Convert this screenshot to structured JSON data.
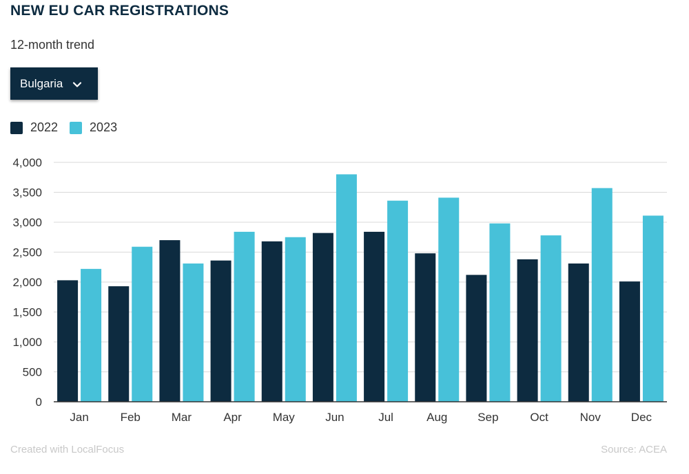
{
  "header": {
    "title": "NEW EU CAR REGISTRATIONS",
    "subtitle": "12-month trend"
  },
  "selector": {
    "selected": "Bulgaria",
    "icon": "chevron-down-icon"
  },
  "footer": {
    "credit": "Created with LocalFocus",
    "source": "Source:  ACEA"
  },
  "colors": {
    "s2022": "#0d2b40",
    "s2023": "#47c1d9",
    "grid": "#d9d9d9"
  },
  "chart_data": {
    "type": "bar",
    "title": "NEW EU CAR REGISTRATIONS",
    "subtitle": "12-month trend",
    "categories": [
      "Jan",
      "Feb",
      "Mar",
      "Apr",
      "May",
      "Jun",
      "Jul",
      "Aug",
      "Sep",
      "Oct",
      "Nov",
      "Dec"
    ],
    "series": [
      {
        "name": "2022",
        "values": [
          2030,
          1930,
          2700,
          2360,
          2680,
          2820,
          2840,
          2480,
          2120,
          2380,
          2310,
          2010
        ]
      },
      {
        "name": "2023",
        "values": [
          2220,
          2590,
          2310,
          2840,
          2750,
          3800,
          3360,
          3410,
          2980,
          2780,
          3570,
          3110
        ]
      }
    ],
    "ylim": [
      0,
      4000
    ],
    "yticks": [
      0,
      500,
      1000,
      1500,
      2000,
      2500,
      3000,
      3500,
      4000
    ],
    "ytick_labels": [
      "0",
      "500",
      "1,000",
      "1,500",
      "2,000",
      "2,500",
      "3,000",
      "3,500",
      "4,000"
    ],
    "grid": true,
    "legend": "top-left"
  }
}
